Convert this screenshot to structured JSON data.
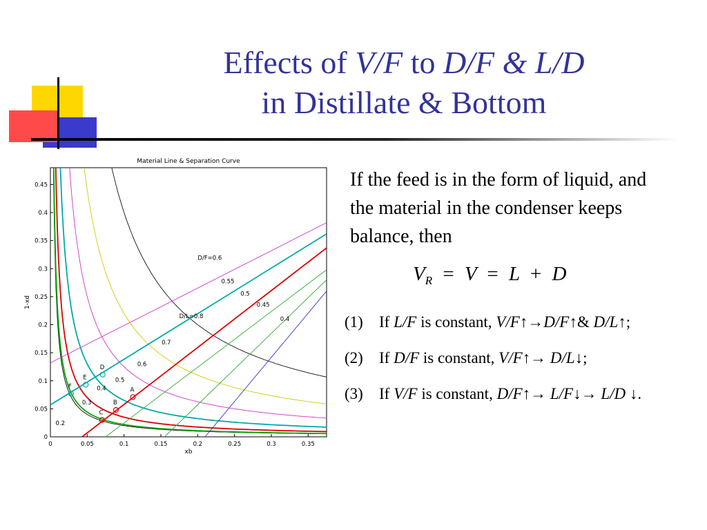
{
  "slide": {
    "title_line1_parts": [
      "Effects of ",
      "V/F",
      " to ",
      "D/F & L/D"
    ],
    "title_line2": "in Distillate & Bottom",
    "intro": "If the feed is in the form of liquid, and the material in the condenser keeps balance, then",
    "equation": {
      "lhs": "V",
      "lhs_sub": "R",
      "eq1": "=",
      "mid": "V",
      "eq2": "=",
      "t1": "L",
      "plus": "+",
      "t2": "D"
    },
    "items": [
      {
        "num": "(1)",
        "parts": [
          [
            "If ",
            false
          ],
          [
            "L/F",
            true
          ],
          [
            " is constant, ",
            false
          ],
          [
            "V/F↑→D/F↑",
            true
          ],
          [
            "& ",
            false
          ],
          [
            "D/L↑",
            true
          ],
          [
            ";",
            false
          ]
        ]
      },
      {
        "num": "(2)",
        "parts": [
          [
            "If ",
            false
          ],
          [
            "D/F",
            true
          ],
          [
            " is constant, ",
            false
          ],
          [
            "V/F↑→ D/L↓",
            true
          ],
          [
            ";",
            false
          ]
        ]
      },
      {
        "num": "(3)",
        "parts": [
          [
            "If ",
            false
          ],
          [
            "V/F",
            true
          ],
          [
            " is constant, ",
            false
          ],
          [
            "D/F↑→ L/F↓→ L/D ↓",
            true
          ],
          [
            ".",
            false
          ]
        ]
      }
    ]
  },
  "colors": {
    "title": "#333399",
    "deco_yellow": "#FFD700",
    "deco_red": "#FF3333",
    "deco_blue": "#3333CC"
  },
  "chart_data": {
    "type": "line",
    "title": "Material Line & Separation Curve",
    "xlabel": "xb",
    "ylabel": "1-xd",
    "xlim": [
      0,
      0.375
    ],
    "ylim": [
      0,
      0.48
    ],
    "xticks": [
      "0",
      "0.05",
      "0.1",
      "0.15",
      "0.2",
      "0.25",
      "0.3",
      "0.35"
    ],
    "xtick_values": [
      0,
      0.05,
      0.1,
      0.15,
      0.2,
      0.25,
      0.3,
      0.35
    ],
    "yticks": [
      "0",
      "0.05",
      "0.1",
      "0.15",
      "0.2",
      "0.25",
      "0.3",
      "0.35",
      "0.4",
      "0.45"
    ],
    "ytick_values": [
      0,
      0.05,
      0.1,
      0.15,
      0.2,
      0.25,
      0.3,
      0.35,
      0.4,
      0.45
    ],
    "material_lines": [
      {
        "label": "0.8",
        "color": "#CC33CC",
        "points": [
          [
            0,
            0.132
          ],
          [
            0.375,
            0.382
          ]
        ]
      },
      {
        "label": "0.7",
        "color": "#00AAAA",
        "points": [
          [
            0,
            0.057
          ],
          [
            0.375,
            0.362
          ]
        ]
      },
      {
        "label": "0.6",
        "color": "#DD0000",
        "points": [
          [
            0.043,
            0
          ],
          [
            0.375,
            0.337
          ]
        ]
      },
      {
        "label": "0.55",
        "color": "#33AA33",
        "points": [
          [
            0.075,
            0
          ],
          [
            0.375,
            0.298
          ]
        ]
      },
      {
        "label": "0.5",
        "color": "#33AA33",
        "points": [
          [
            0.155,
            0
          ],
          [
            0.375,
            0.28
          ]
        ]
      },
      {
        "label": "0.45",
        "color": "#3333CC",
        "points": [
          [
            0.21,
            0
          ],
          [
            0.375,
            0.26
          ]
        ]
      }
    ],
    "separation_curves": [
      {
        "label": "0.2",
        "color": "#000000",
        "k": 0.002
      },
      {
        "label": "0.3",
        "color": "#00AA00",
        "k": 0.0022
      },
      {
        "label": "0.4",
        "color": "#DD0000",
        "k": 0.0035
      },
      {
        "label": "0.5",
        "color": "#00AAAA",
        "k": 0.0065
      },
      {
        "label": "0.6",
        "color": "#CC33CC",
        "k": 0.0125
      },
      {
        "label": "0.7",
        "color": "#CCCC00",
        "k": 0.022
      },
      {
        "label": "0.8",
        "color": "#111111",
        "k": 0.04
      }
    ],
    "points": [
      {
        "label": "A",
        "x": 0.112,
        "y": 0.071,
        "color": "#DD0000"
      },
      {
        "label": "B",
        "x": 0.089,
        "y": 0.048,
        "color": "#DD0000"
      },
      {
        "label": "C",
        "x": 0.07,
        "y": 0.03,
        "color": "#DD0000"
      },
      {
        "label": "D",
        "x": 0.071,
        "y": 0.111,
        "color": "#00AAAA"
      },
      {
        "label": "E",
        "x": 0.048,
        "y": 0.093,
        "color": "#00AAAA"
      },
      {
        "label": "F",
        "x": 0.028,
        "y": 0.077,
        "color": "#00AAAA"
      }
    ],
    "annotations": [
      {
        "text": "D/F=0.6",
        "x": 0.2,
        "y": 0.316
      },
      {
        "text": "D/L=0.8",
        "x": 0.175,
        "y": 0.212
      },
      {
        "text": "0.55",
        "x": 0.232,
        "y": 0.274
      },
      {
        "text": "0.5",
        "x": 0.258,
        "y": 0.252
      },
      {
        "text": "0.45",
        "x": 0.28,
        "y": 0.232
      },
      {
        "text": "0.4",
        "x": 0.312,
        "y": 0.207
      },
      {
        "text": "0.7",
        "x": 0.151,
        "y": 0.165
      },
      {
        "text": "0.6",
        "x": 0.118,
        "y": 0.126
      },
      {
        "text": "0.5",
        "x": 0.088,
        "y": 0.098
      },
      {
        "text": "0.4",
        "x": 0.063,
        "y": 0.083
      },
      {
        "text": "0.3",
        "x": 0.043,
        "y": 0.058
      },
      {
        "text": "0.2",
        "x": 0.007,
        "y": 0.021
      }
    ]
  }
}
